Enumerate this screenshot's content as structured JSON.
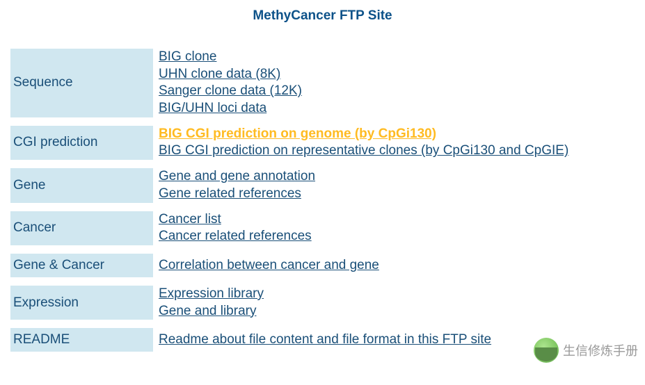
{
  "title": "MethyCancer FTP Site",
  "rows": [
    {
      "label": "Sequence",
      "links": [
        {
          "text": "BIG clone",
          "highlight": false
        },
        {
          "text": "UHN clone data (8K)",
          "highlight": false
        },
        {
          "text": "Sanger clone data (12K)",
          "highlight": false
        },
        {
          "text": "BIG/UHN loci data",
          "highlight": false
        }
      ]
    },
    {
      "label": "CGI prediction",
      "links": [
        {
          "text": "BIG CGI prediction on genome (by CpGi130)",
          "highlight": true
        },
        {
          "text": "BIG CGI prediction on representative clones (by CpGi130 and CpGIE)",
          "highlight": false
        }
      ]
    },
    {
      "label": "Gene",
      "links": [
        {
          "text": "Gene and gene annotation",
          "highlight": false
        },
        {
          "text": "Gene related references",
          "highlight": false
        }
      ]
    },
    {
      "label": "Cancer",
      "links": [
        {
          "text": "Cancer list",
          "highlight": false
        },
        {
          "text": "Cancer related references",
          "highlight": false
        }
      ]
    },
    {
      "label": "Gene & Cancer",
      "links": [
        {
          "text": "Correlation between cancer and gene",
          "highlight": false
        }
      ]
    },
    {
      "label": "Expression",
      "links": [
        {
          "text": "Expression library",
          "highlight": false
        },
        {
          "text": "Gene and library",
          "highlight": false
        }
      ]
    },
    {
      "label": "README",
      "links": [
        {
          "text": "Readme about file content and file format in this FTP site",
          "highlight": false
        }
      ]
    }
  ],
  "watermark": {
    "text": "生信修炼手册"
  },
  "colors": {
    "label_bg": "#d0e7f0",
    "text": "#1a4f78",
    "highlight": "#ffbb22",
    "background": "#ffffff"
  }
}
